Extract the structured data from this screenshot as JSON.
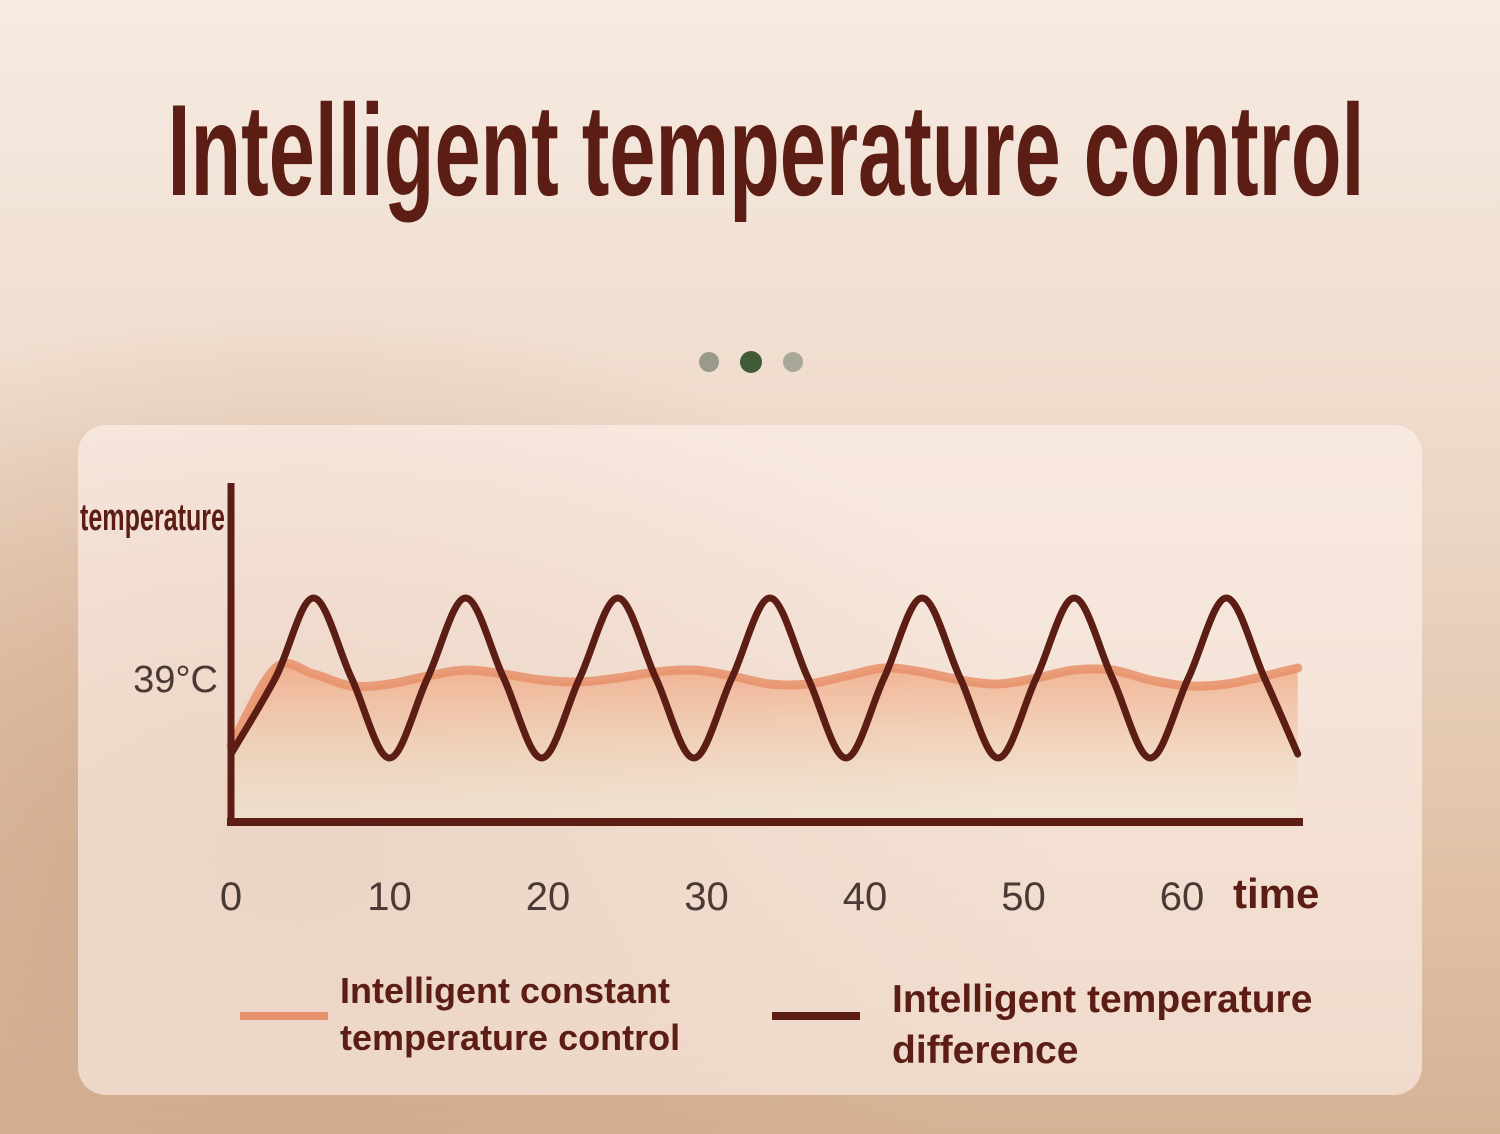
{
  "chart_data": {
    "type": "line",
    "title": "Intelligent temperature control",
    "ylabel": "temperature",
    "xlabel": "time",
    "x": [
      0,
      2.8,
      5.2,
      7.6,
      10,
      12.4,
      14.8,
      17.2,
      19.6,
      22,
      24.4,
      26.8,
      29.2,
      31.6,
      34,
      36.4,
      38.8,
      41.2,
      43.6,
      46,
      48.4,
      50.8,
      53.2,
      55.6,
      58,
      60.4,
      62.8,
      65.2,
      67.3
    ],
    "xlim": [
      0,
      67.6
    ],
    "xticks": [
      0,
      10,
      20,
      30,
      40,
      50,
      60
    ],
    "ylim": [
      35.4,
      43.9
    ],
    "yticks": [
      {
        "value": 39,
        "label": "39°C"
      }
    ],
    "series": [
      {
        "name": "Intelligent constant temperature control",
        "color": "#e8906a",
        "values": [
          37.3,
          39.25,
          39.1,
          38.8,
          38.85,
          39.05,
          39.2,
          39.1,
          38.95,
          38.9,
          39,
          39.15,
          39.2,
          39.05,
          38.85,
          38.85,
          39.05,
          39.25,
          39.15,
          38.95,
          38.85,
          39,
          39.2,
          39.2,
          38.95,
          38.8,
          38.85,
          39.05,
          39.25
        ]
      },
      {
        "name": "Intelligent temperature difference",
        "color": "#5b1d14",
        "values": [
          37.1,
          39,
          41,
          39,
          37,
          39,
          41,
          39,
          37,
          39,
          41,
          39,
          37,
          39,
          41,
          39,
          37,
          39,
          41,
          39,
          37,
          39,
          41,
          39,
          37,
          39,
          41,
          39,
          37.1
        ]
      }
    ]
  }
}
